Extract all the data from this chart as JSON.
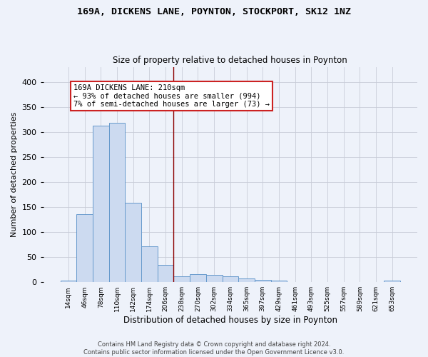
{
  "title_line1": "169A, DICKENS LANE, POYNTON, STOCKPORT, SK12 1NZ",
  "title_line2": "Size of property relative to detached houses in Poynton",
  "xlabel": "Distribution of detached houses by size in Poynton",
  "ylabel": "Number of detached properties",
  "categories": [
    "14sqm",
    "46sqm",
    "78sqm",
    "110sqm",
    "142sqm",
    "174sqm",
    "206sqm",
    "238sqm",
    "270sqm",
    "302sqm",
    "334sqm",
    "365sqm",
    "397sqm",
    "429sqm",
    "461sqm",
    "493sqm",
    "525sqm",
    "557sqm",
    "589sqm",
    "621sqm",
    "653sqm"
  ],
  "values": [
    3,
    136,
    312,
    318,
    158,
    72,
    35,
    12,
    16,
    14,
    12,
    8,
    5,
    3,
    1,
    0,
    0,
    0,
    0,
    0,
    3
  ],
  "bar_color": "#ccdaf0",
  "bar_edge_color": "#6699cc",
  "vline_color": "#8b0000",
  "annotation_text": "169A DICKENS LANE: 210sqm\n← 93% of detached houses are smaller (994)\n7% of semi-detached houses are larger (73) →",
  "annotation_box_color": "#ffffff",
  "annotation_box_edge": "#cc2222",
  "footer_line1": "Contains HM Land Registry data © Crown copyright and database right 2024.",
  "footer_line2": "Contains public sector information licensed under the Open Government Licence v3.0.",
  "background_color": "#eef2fa",
  "grid_color": "#c8ccd8",
  "ylim": [
    0,
    430
  ],
  "yticks": [
    0,
    50,
    100,
    150,
    200,
    250,
    300,
    350,
    400
  ]
}
